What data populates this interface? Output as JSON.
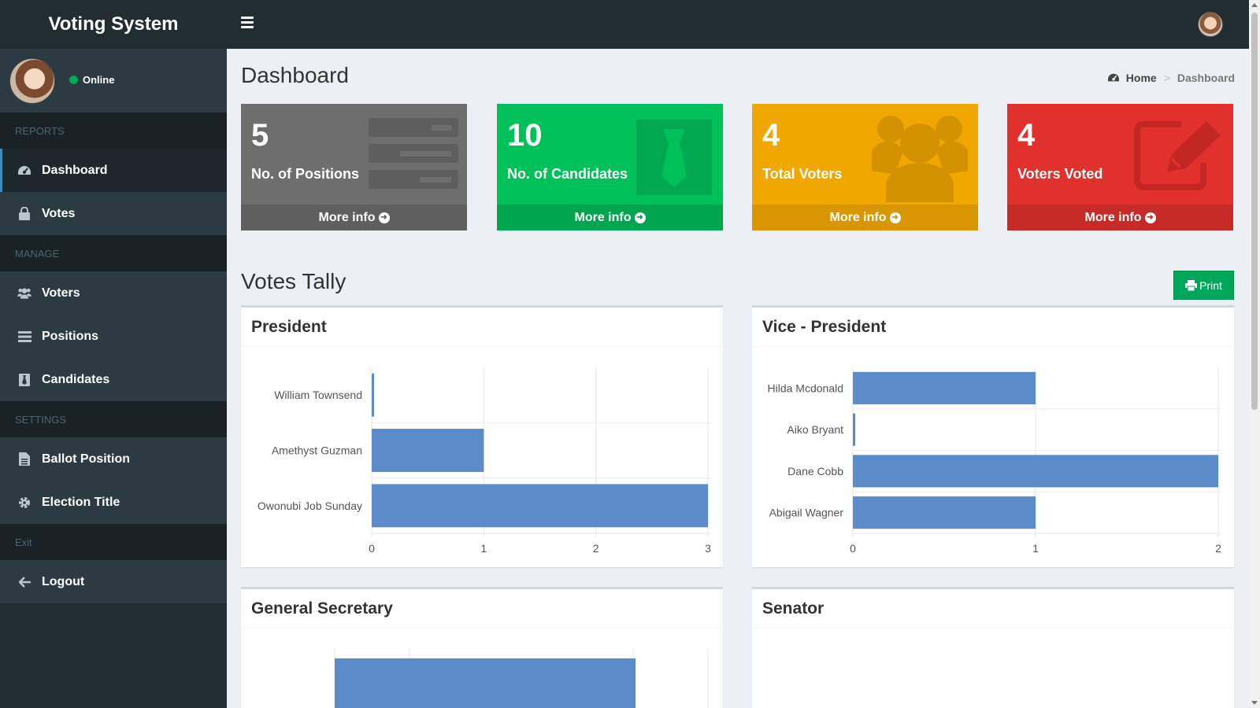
{
  "header": {
    "brand": "Voting System"
  },
  "user": {
    "status": "Online"
  },
  "sidebar": {
    "sections": [
      {
        "title": "REPORTS",
        "items": [
          {
            "label": "Dashboard",
            "icon": "dashboard-icon",
            "active": true
          },
          {
            "label": "Votes",
            "icon": "lock-icon"
          }
        ]
      },
      {
        "title": "MANAGE",
        "items": [
          {
            "label": "Voters",
            "icon": "users-icon"
          },
          {
            "label": "Positions",
            "icon": "list-icon"
          },
          {
            "label": "Candidates",
            "icon": "tie-icon"
          }
        ]
      },
      {
        "title": "SETTINGS",
        "items": [
          {
            "label": "Ballot Position",
            "icon": "file-icon"
          },
          {
            "label": "Election Title",
            "icon": "gear-icon"
          }
        ]
      },
      {
        "title": "Exit",
        "items": [
          {
            "label": "Logout",
            "icon": "arrow-left-icon"
          }
        ]
      }
    ]
  },
  "page": {
    "title": "Dashboard",
    "breadcrumb": {
      "home": "Home",
      "current": "Dashboard"
    }
  },
  "stats": [
    {
      "value": "5",
      "label": "No. of Positions",
      "footer": "More info",
      "color": "#6e6e6e",
      "footer_color": "#5f5f5f",
      "icon": "tasks-icon"
    },
    {
      "value": "10",
      "label": "No. of Candidates",
      "footer": "More info",
      "color": "#00c05a",
      "footer_color": "#00a550",
      "icon": "tie-icon"
    },
    {
      "value": "4",
      "label": "Total Voters",
      "footer": "More info",
      "color": "#f0a700",
      "footer_color": "#d99600",
      "icon": "users-icon"
    },
    {
      "value": "4",
      "label": "Voters Voted",
      "footer": "More info",
      "color": "#e0312c",
      "footer_color": "#c72b27",
      "icon": "edit-icon"
    }
  ],
  "tally": {
    "title": "Votes Tally",
    "print_label": "Print"
  },
  "chart_data": [
    {
      "type": "bar",
      "orientation": "horizontal",
      "title": "President",
      "categories": [
        "William Townsend",
        "Amethyst Guzman",
        "Owonubi Job Sunday"
      ],
      "values": [
        0,
        1,
        3
      ],
      "xlim": [
        0,
        3
      ],
      "ticks": [
        "0",
        "1",
        "2",
        "3"
      ],
      "color": "#5b8bc9"
    },
    {
      "type": "bar",
      "orientation": "horizontal",
      "title": "Vice - President",
      "categories": [
        "Hilda Mcdonald",
        "Aiko Bryant",
        "Dane Cobb",
        "Abigail Wagner"
      ],
      "values": [
        1,
        0,
        2,
        1
      ],
      "xlim": [
        0,
        2
      ],
      "ticks": [
        "0",
        "1",
        "2"
      ],
      "color": "#5b8bc9"
    },
    {
      "type": "bar",
      "orientation": "vertical",
      "title": "General Secretary",
      "color": "#5b8bc9"
    },
    {
      "type": "bar",
      "title": "Senator"
    }
  ]
}
